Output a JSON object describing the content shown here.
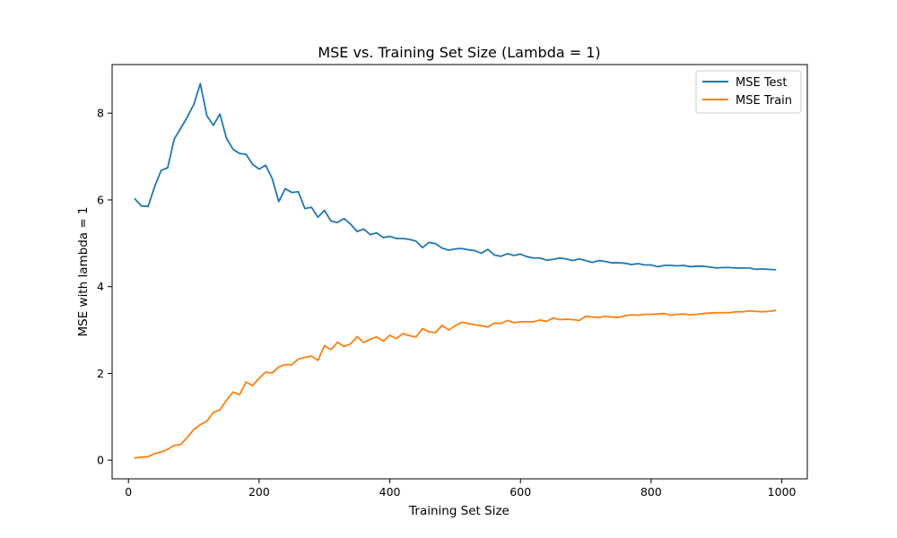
{
  "chart_data": {
    "type": "line",
    "title": "MSE vs. Training Set Size (Lambda = 1)",
    "xlabel": "Training Set Size",
    "ylabel": "MSE with lambda = 1",
    "xlim": [
      -25,
      1039
    ],
    "ylim": [
      -0.43,
      9.12
    ],
    "xticks": [
      0,
      200,
      400,
      600,
      800,
      1000
    ],
    "yticks": [
      0,
      2,
      4,
      6,
      8
    ],
    "grid": false,
    "legend_position": "top-right",
    "x": [
      10,
      20,
      30,
      40,
      50,
      60,
      70,
      80,
      90,
      100,
      110,
      120,
      130,
      140,
      150,
      160,
      170,
      180,
      190,
      200,
      210,
      220,
      230,
      240,
      250,
      260,
      270,
      280,
      290,
      300,
      310,
      320,
      330,
      340,
      350,
      360,
      370,
      380,
      390,
      400,
      410,
      420,
      430,
      440,
      450,
      460,
      470,
      480,
      490,
      500,
      510,
      520,
      530,
      540,
      550,
      560,
      570,
      580,
      590,
      600,
      610,
      620,
      630,
      640,
      650,
      660,
      670,
      680,
      690,
      700,
      710,
      720,
      730,
      740,
      750,
      760,
      770,
      780,
      790,
      800,
      810,
      820,
      830,
      840,
      850,
      860,
      870,
      880,
      890,
      900,
      910,
      920,
      930,
      940,
      950,
      960,
      970,
      980,
      990
    ],
    "series": [
      {
        "name": "MSE Test",
        "color": "#1f77b4",
        "values": [
          6.02,
          5.86,
          5.85,
          6.3,
          6.68,
          6.74,
          7.4,
          7.65,
          7.91,
          8.2,
          8.68,
          7.94,
          7.72,
          7.98,
          7.42,
          7.17,
          7.07,
          7.05,
          6.82,
          6.71,
          6.8,
          6.49,
          5.96,
          6.26,
          6.17,
          6.19,
          5.8,
          5.83,
          5.6,
          5.76,
          5.51,
          5.48,
          5.57,
          5.44,
          5.27,
          5.33,
          5.2,
          5.24,
          5.13,
          5.16,
          5.11,
          5.11,
          5.09,
          5.05,
          4.9,
          5.02,
          4.99,
          4.89,
          4.84,
          4.87,
          4.88,
          4.85,
          4.83,
          4.77,
          4.86,
          4.73,
          4.7,
          4.76,
          4.72,
          4.75,
          4.69,
          4.66,
          4.66,
          4.61,
          4.63,
          4.66,
          4.64,
          4.6,
          4.64,
          4.6,
          4.56,
          4.6,
          4.58,
          4.55,
          4.55,
          4.54,
          4.51,
          4.53,
          4.5,
          4.5,
          4.46,
          4.49,
          4.49,
          4.48,
          4.49,
          4.46,
          4.47,
          4.47,
          4.45,
          4.43,
          4.44,
          4.44,
          4.43,
          4.43,
          4.43,
          4.4,
          4.41,
          4.4,
          4.39
        ]
      },
      {
        "name": "MSE Train",
        "color": "#ff7f0e",
        "values": [
          0.05,
          0.07,
          0.08,
          0.15,
          0.19,
          0.25,
          0.34,
          0.36,
          0.52,
          0.71,
          0.82,
          0.9,
          1.1,
          1.16,
          1.38,
          1.57,
          1.51,
          1.8,
          1.72,
          1.89,
          2.03,
          2.01,
          2.15,
          2.2,
          2.2,
          2.33,
          2.37,
          2.4,
          2.3,
          2.64,
          2.55,
          2.72,
          2.62,
          2.68,
          2.85,
          2.71,
          2.79,
          2.84,
          2.74,
          2.88,
          2.8,
          2.92,
          2.87,
          2.84,
          3.03,
          2.96,
          2.94,
          3.11,
          3.0,
          3.1,
          3.18,
          3.15,
          3.12,
          3.1,
          3.07,
          3.16,
          3.15,
          3.22,
          3.17,
          3.19,
          3.19,
          3.19,
          3.23,
          3.2,
          3.28,
          3.24,
          3.25,
          3.24,
          3.22,
          3.32,
          3.3,
          3.29,
          3.32,
          3.3,
          3.29,
          3.33,
          3.35,
          3.34,
          3.36,
          3.36,
          3.37,
          3.38,
          3.34,
          3.36,
          3.37,
          3.35,
          3.36,
          3.38,
          3.39,
          3.4,
          3.4,
          3.4,
          3.42,
          3.42,
          3.44,
          3.43,
          3.42,
          3.43,
          3.45
        ]
      }
    ]
  }
}
